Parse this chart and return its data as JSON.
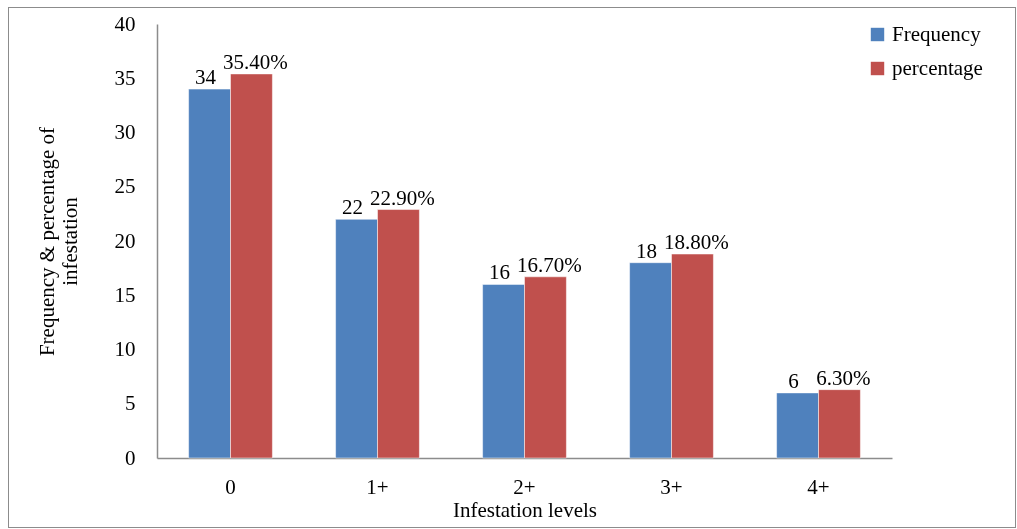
{
  "chart_data": {
    "type": "bar",
    "xlabel": "Infestation levels",
    "ylabel": "Frequency & percentage of infestation",
    "categories": [
      "0",
      "1+",
      "2+",
      "3+",
      "4+"
    ],
    "series": [
      {
        "name": "Frequency",
        "color": "#4f81bd",
        "values": [
          34,
          22,
          16,
          18,
          6
        ],
        "value_labels": [
          "34",
          "22",
          "16",
          "18",
          "6"
        ]
      },
      {
        "name": "percentage",
        "color": "#c0504d",
        "values": [
          35.4,
          22.9,
          16.7,
          18.8,
          6.3
        ],
        "value_labels": [
          "35.40%",
          "22.90%",
          "16.70%",
          "18.80%",
          "6.30%"
        ]
      }
    ],
    "ylim": [
      0,
      40
    ],
    "yticks": [
      0,
      5,
      10,
      15,
      20,
      25,
      30,
      35,
      40
    ],
    "legend": "top right"
  }
}
